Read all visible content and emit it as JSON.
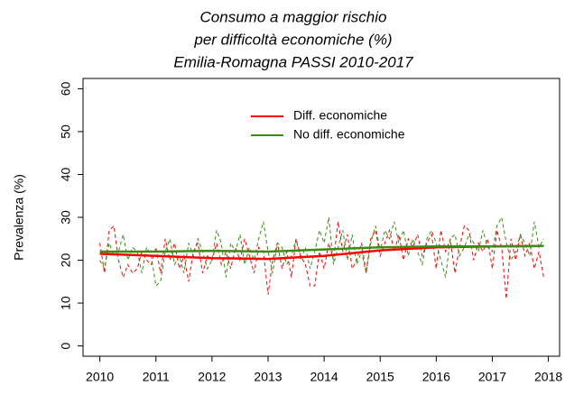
{
  "chart_data": {
    "type": "line",
    "title": [
      "Consumo a maggior rischio",
      "per difficoltà economiche (%)",
      "Emilia-Romagna PASSI 2010-2017"
    ],
    "ylabel": "Prevalenza (%)",
    "x": [
      2010,
      2010.083,
      2010.167,
      2010.25,
      2010.333,
      2010.417,
      2010.5,
      2010.583,
      2010.667,
      2010.75,
      2010.833,
      2010.917,
      2011,
      2011.083,
      2011.167,
      2011.25,
      2011.333,
      2011.417,
      2011.5,
      2011.583,
      2011.667,
      2011.75,
      2011.833,
      2011.917,
      2012,
      2012.083,
      2012.167,
      2012.25,
      2012.333,
      2012.417,
      2012.5,
      2012.583,
      2012.667,
      2012.75,
      2012.833,
      2012.917,
      2013,
      2013.083,
      2013.167,
      2013.25,
      2013.333,
      2013.417,
      2013.5,
      2013.583,
      2013.667,
      2013.75,
      2013.833,
      2013.917,
      2014,
      2014.083,
      2014.167,
      2014.25,
      2014.333,
      2014.417,
      2014.5,
      2014.583,
      2014.667,
      2014.75,
      2014.833,
      2014.917,
      2015,
      2015.083,
      2015.167,
      2015.25,
      2015.333,
      2015.417,
      2015.5,
      2015.583,
      2015.667,
      2015.75,
      2015.833,
      2015.917,
      2016,
      2016.083,
      2016.167,
      2016.25,
      2016.333,
      2016.417,
      2016.5,
      2016.583,
      2016.667,
      2016.75,
      2016.833,
      2016.917,
      2017,
      2017.083,
      2017.167,
      2017.25,
      2017.333,
      2017.417,
      2017.5,
      2017.583,
      2017.667,
      2017.75,
      2017.833,
      2017.917
    ],
    "trend_x": [
      2010,
      2011,
      2012,
      2013,
      2014,
      2015,
      2016,
      2017,
      2017.917
    ],
    "series": [
      {
        "name": "Diff. economiche",
        "color": "#ff0000",
        "values": [
          24,
          17,
          27,
          28,
          20,
          16,
          19,
          17,
          18,
          22,
          20,
          19,
          23,
          17,
          25,
          20,
          24,
          18,
          21,
          15,
          22,
          24,
          17,
          21,
          20,
          24,
          19,
          22,
          18,
          23,
          20,
          25,
          21,
          17,
          23,
          22,
          12,
          20,
          24,
          18,
          22,
          16,
          25,
          21,
          19,
          14,
          14,
          22,
          18,
          24,
          20,
          29,
          22,
          26,
          18,
          20,
          24,
          17,
          25,
          27,
          21,
          24,
          27,
          22,
          26,
          20,
          25,
          23,
          26,
          21,
          24,
          26,
          18,
          27,
          22,
          25,
          17,
          23,
          28,
          27,
          20,
          24,
          22,
          25,
          18,
          27,
          23,
          11,
          25,
          20,
          26,
          21,
          24,
          18,
          22,
          16
        ],
        "trend": [
          21.5,
          21,
          20.5,
          20.3,
          21,
          22.3,
          23,
          23.2,
          23.3
        ]
      },
      {
        "name": "No diff. economiche",
        "color": "#3c8c14",
        "values": [
          20,
          18,
          24,
          21,
          22,
          26,
          20,
          23,
          22,
          17,
          23,
          21,
          14,
          15,
          22,
          25,
          19,
          21,
          17,
          24,
          21,
          25,
          22,
          18,
          20,
          27,
          24,
          16,
          24,
          22,
          26,
          19,
          23,
          20,
          25,
          29,
          22,
          17,
          24,
          23,
          19,
          21,
          25,
          20,
          23,
          18,
          22,
          27,
          24,
          30,
          19,
          23,
          27,
          20,
          26,
          19,
          22,
          17,
          24,
          28,
          22,
          27,
          25,
          29,
          24,
          27,
          21,
          25,
          22,
          19,
          25,
          27,
          24,
          20,
          16,
          25,
          26,
          21,
          23,
          26,
          24,
          22,
          27,
          23,
          22,
          28,
          30,
          24,
          20,
          22,
          26,
          24,
          21,
          29,
          23,
          25
        ],
        "trend": [
          22,
          22,
          22.2,
          22,
          22.5,
          23,
          23.2,
          23.2,
          23.3
        ]
      }
    ],
    "xlim": [
      2009.7,
      2018.2
    ],
    "xticks": [
      2010,
      2011,
      2012,
      2013,
      2014,
      2015,
      2016,
      2017,
      2018
    ],
    "ylim": [
      -2.4,
      62.4
    ],
    "yticks": [
      0,
      10,
      20,
      30,
      40,
      50,
      60
    ],
    "legend": "top"
  }
}
